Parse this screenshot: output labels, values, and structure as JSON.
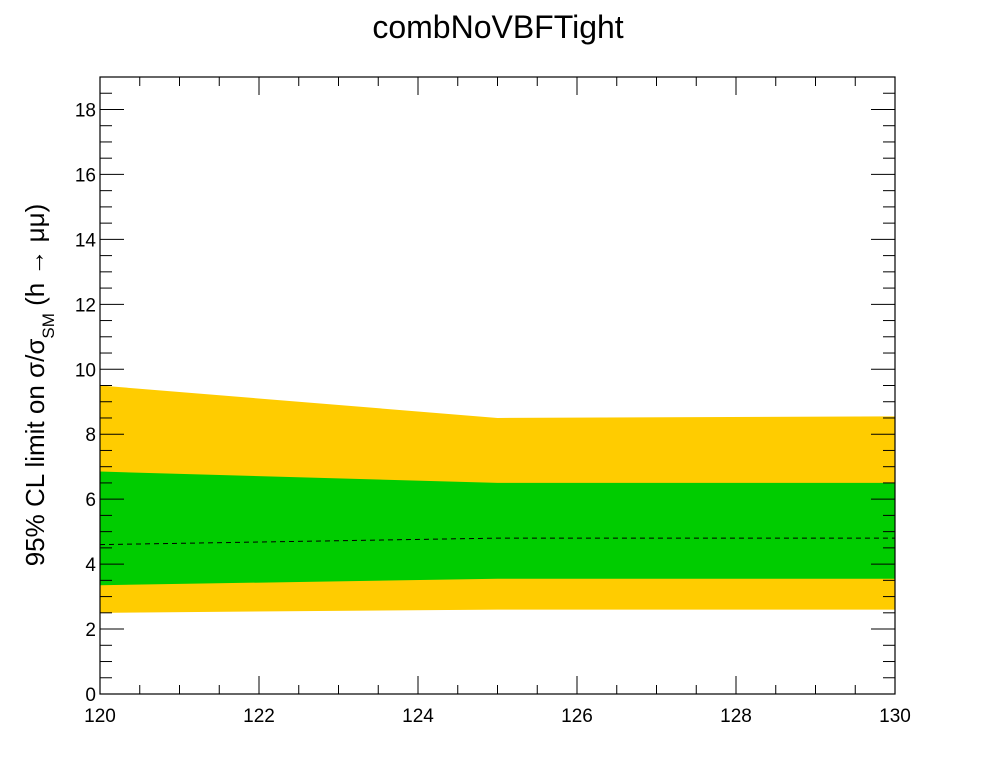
{
  "chart_data": {
    "type": "area",
    "title": "combNoVBFTight",
    "xlabel": "",
    "ylabel": {
      "prefix": "95% CL limit on σ/σ",
      "subscript": "SM",
      "suffix": " (h → μμ)"
    },
    "xlim": [
      120,
      130
    ],
    "ylim": [
      0,
      19
    ],
    "x_ticks": [
      120,
      122,
      124,
      126,
      128,
      130
    ],
    "y_ticks": [
      0,
      2,
      4,
      6,
      8,
      10,
      12,
      14,
      16,
      18
    ],
    "x_tick_labels": [
      "120",
      "122",
      "124",
      "126",
      "128",
      "130"
    ],
    "y_tick_labels": [
      "0",
      "2",
      "4",
      "6",
      "8",
      "10",
      "12",
      "14",
      "16",
      "18"
    ],
    "grid": false,
    "x": [
      120,
      125,
      130
    ],
    "series": [
      {
        "role": "band_2sigma",
        "color": "#ffcc00",
        "low": [
          2.5,
          2.6,
          2.6
        ],
        "high": [
          9.5,
          8.5,
          8.55
        ]
      },
      {
        "role": "band_1sigma",
        "color": "#00cc00",
        "low": [
          3.35,
          3.55,
          3.55
        ],
        "high": [
          6.85,
          6.5,
          6.5
        ]
      },
      {
        "role": "median_expected",
        "color": "#000000",
        "style": "dashed",
        "values": [
          4.6,
          4.8,
          4.8
        ]
      }
    ]
  }
}
